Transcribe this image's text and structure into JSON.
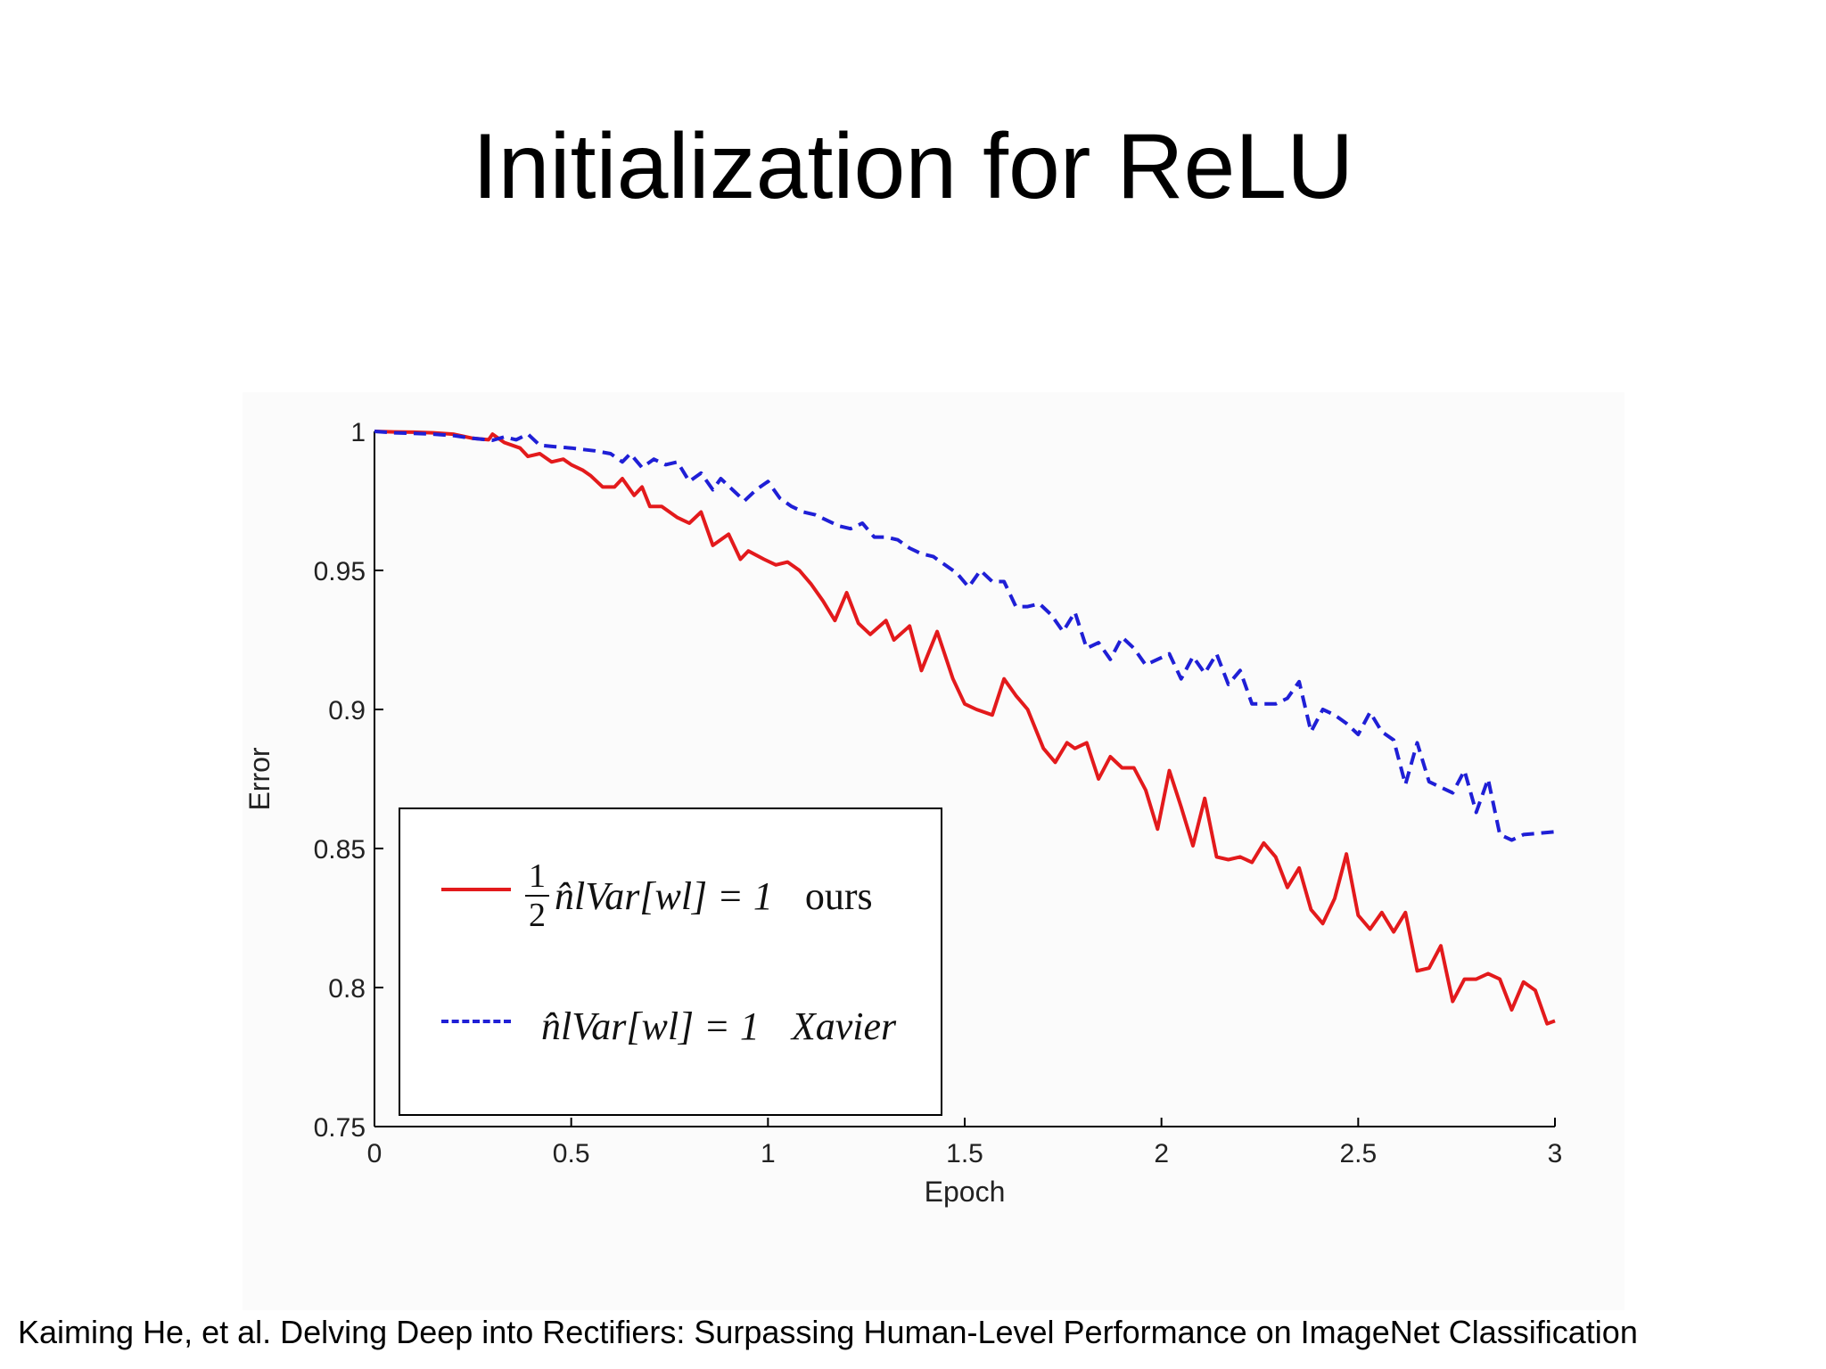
{
  "slide": {
    "title": "Initialization for ReLU",
    "citation": "Kaiming He, et al. Delving Deep into Rectifiers: Surpassing Human-Level Performance on ImageNet Classification"
  },
  "legend": {
    "ours_formula": "n̂lVar[wl] = 1",
    "ours_fraction_num": "1",
    "ours_fraction_den": "2",
    "ours_label": "ours",
    "xavier_formula": "n̂lVar[wl] = 1",
    "xavier_label": "Xavier"
  },
  "colors": {
    "ours": "#e31a1c",
    "xavier": "#1f1fd6",
    "axis": "#000000"
  },
  "chart_data": {
    "type": "line",
    "title": "",
    "xlabel": "Epoch",
    "ylabel": "Error",
    "xlim": [
      0,
      3
    ],
    "ylim": [
      0.75,
      1
    ],
    "xticks": [
      0,
      0.5,
      1,
      1.5,
      2,
      2.5,
      3
    ],
    "xtick_labels": [
      "0",
      "0.5",
      "1",
      "1.5",
      "2",
      "2.5",
      "3"
    ],
    "yticks": [
      0.75,
      0.8,
      0.85,
      0.9,
      0.95,
      1
    ],
    "ytick_labels": [
      "0.75",
      "0.8",
      "0.85",
      "0.9",
      "0.95",
      "1"
    ],
    "grid": false,
    "legend_position": "bottom-left",
    "series": [
      {
        "name": "ours",
        "style": "solid",
        "color": "#e31a1c",
        "points": [
          [
            0,
            1.0
          ],
          [
            0.05,
            0.9998
          ],
          [
            0.1,
            0.9997
          ],
          [
            0.15,
            0.9995
          ],
          [
            0.2,
            0.999
          ],
          [
            0.25,
            0.9975
          ],
          [
            0.29,
            0.997
          ],
          [
            0.3,
            0.999
          ],
          [
            0.33,
            0.996
          ],
          [
            0.37,
            0.994
          ],
          [
            0.39,
            0.991
          ],
          [
            0.42,
            0.992
          ],
          [
            0.45,
            0.989
          ],
          [
            0.48,
            0.99
          ],
          [
            0.5,
            0.988
          ],
          [
            0.53,
            0.986
          ],
          [
            0.55,
            0.984
          ],
          [
            0.58,
            0.98
          ],
          [
            0.61,
            0.98
          ],
          [
            0.63,
            0.983
          ],
          [
            0.66,
            0.977
          ],
          [
            0.68,
            0.98
          ],
          [
            0.7,
            0.973
          ],
          [
            0.73,
            0.973
          ],
          [
            0.75,
            0.971
          ],
          [
            0.77,
            0.969
          ],
          [
            0.8,
            0.967
          ],
          [
            0.83,
            0.971
          ],
          [
            0.86,
            0.959
          ],
          [
            0.9,
            0.963
          ],
          [
            0.93,
            0.954
          ],
          [
            0.95,
            0.957
          ],
          [
            0.99,
            0.954
          ],
          [
            1.02,
            0.952
          ],
          [
            1.05,
            0.953
          ],
          [
            1.08,
            0.95
          ],
          [
            1.11,
            0.945
          ],
          [
            1.14,
            0.939
          ],
          [
            1.17,
            0.932
          ],
          [
            1.2,
            0.942
          ],
          [
            1.23,
            0.931
          ],
          [
            1.26,
            0.927
          ],
          [
            1.3,
            0.932
          ],
          [
            1.32,
            0.925
          ],
          [
            1.36,
            0.93
          ],
          [
            1.39,
            0.914
          ],
          [
            1.43,
            0.928
          ],
          [
            1.47,
            0.911
          ],
          [
            1.5,
            0.902
          ],
          [
            1.53,
            0.9
          ],
          [
            1.57,
            0.898
          ],
          [
            1.6,
            0.911
          ],
          [
            1.63,
            0.905
          ],
          [
            1.66,
            0.9
          ],
          [
            1.7,
            0.886
          ],
          [
            1.73,
            0.881
          ],
          [
            1.76,
            0.888
          ],
          [
            1.78,
            0.886
          ],
          [
            1.81,
            0.888
          ],
          [
            1.84,
            0.875
          ],
          [
            1.87,
            0.883
          ],
          [
            1.9,
            0.879
          ],
          [
            1.93,
            0.879
          ],
          [
            1.96,
            0.871
          ],
          [
            1.99,
            0.857
          ],
          [
            2.02,
            0.878
          ],
          [
            2.05,
            0.865
          ],
          [
            2.08,
            0.851
          ],
          [
            2.11,
            0.868
          ],
          [
            2.14,
            0.847
          ],
          [
            2.17,
            0.846
          ],
          [
            2.2,
            0.847
          ],
          [
            2.23,
            0.845
          ],
          [
            2.26,
            0.852
          ],
          [
            2.29,
            0.847
          ],
          [
            2.32,
            0.836
          ],
          [
            2.35,
            0.843
          ],
          [
            2.38,
            0.828
          ],
          [
            2.41,
            0.823
          ],
          [
            2.44,
            0.832
          ],
          [
            2.47,
            0.848
          ],
          [
            2.5,
            0.826
          ],
          [
            2.53,
            0.821
          ],
          [
            2.56,
            0.827
          ],
          [
            2.59,
            0.82
          ],
          [
            2.62,
            0.827
          ],
          [
            2.65,
            0.806
          ],
          [
            2.68,
            0.807
          ],
          [
            2.71,
            0.815
          ],
          [
            2.74,
            0.795
          ],
          [
            2.77,
            0.803
          ],
          [
            2.8,
            0.803
          ],
          [
            2.83,
            0.805
          ],
          [
            2.86,
            0.803
          ],
          [
            2.89,
            0.792
          ],
          [
            2.92,
            0.802
          ],
          [
            2.95,
            0.799
          ],
          [
            2.98,
            0.787
          ],
          [
            3.0,
            0.788
          ]
        ]
      },
      {
        "name": "Xavier",
        "style": "dashed",
        "color": "#1f1fd6",
        "points": [
          [
            0,
            1.0
          ],
          [
            0.05,
            0.9995
          ],
          [
            0.1,
            0.9993
          ],
          [
            0.15,
            0.999
          ],
          [
            0.2,
            0.9985
          ],
          [
            0.25,
            0.9975
          ],
          [
            0.3,
            0.9968
          ],
          [
            0.33,
            0.998
          ],
          [
            0.36,
            0.997
          ],
          [
            0.39,
            0.999
          ],
          [
            0.42,
            0.995
          ],
          [
            0.46,
            0.9945
          ],
          [
            0.5,
            0.994
          ],
          [
            0.53,
            0.9935
          ],
          [
            0.56,
            0.993
          ],
          [
            0.6,
            0.992
          ],
          [
            0.63,
            0.989
          ],
          [
            0.65,
            0.992
          ],
          [
            0.68,
            0.987
          ],
          [
            0.71,
            0.99
          ],
          [
            0.74,
            0.988
          ],
          [
            0.77,
            0.989
          ],
          [
            0.8,
            0.982
          ],
          [
            0.83,
            0.985
          ],
          [
            0.86,
            0.979
          ],
          [
            0.88,
            0.983
          ],
          [
            0.91,
            0.979
          ],
          [
            0.94,
            0.975
          ],
          [
            0.97,
            0.979
          ],
          [
            1.0,
            0.982
          ],
          [
            1.03,
            0.976
          ],
          [
            1.06,
            0.973
          ],
          [
            1.09,
            0.971
          ],
          [
            1.12,
            0.97
          ],
          [
            1.15,
            0.968
          ],
          [
            1.18,
            0.966
          ],
          [
            1.21,
            0.965
          ],
          [
            1.24,
            0.967
          ],
          [
            1.27,
            0.962
          ],
          [
            1.3,
            0.962
          ],
          [
            1.33,
            0.961
          ],
          [
            1.36,
            0.958
          ],
          [
            1.39,
            0.956
          ],
          [
            1.42,
            0.955
          ],
          [
            1.45,
            0.952
          ],
          [
            1.48,
            0.949
          ],
          [
            1.51,
            0.944
          ],
          [
            1.54,
            0.95
          ],
          [
            1.57,
            0.946
          ],
          [
            1.6,
            0.946
          ],
          [
            1.63,
            0.937
          ],
          [
            1.66,
            0.937
          ],
          [
            1.69,
            0.938
          ],
          [
            1.72,
            0.934
          ],
          [
            1.75,
            0.928
          ],
          [
            1.78,
            0.935
          ],
          [
            1.81,
            0.922
          ],
          [
            1.84,
            0.924
          ],
          [
            1.87,
            0.918
          ],
          [
            1.9,
            0.926
          ],
          [
            1.93,
            0.922
          ],
          [
            1.96,
            0.916
          ],
          [
            1.99,
            0.918
          ],
          [
            2.02,
            0.92
          ],
          [
            2.05,
            0.911
          ],
          [
            2.08,
            0.919
          ],
          [
            2.11,
            0.913
          ],
          [
            2.14,
            0.92
          ],
          [
            2.17,
            0.909
          ],
          [
            2.2,
            0.914
          ],
          [
            2.23,
            0.902
          ],
          [
            2.26,
            0.902
          ],
          [
            2.29,
            0.902
          ],
          [
            2.32,
            0.904
          ],
          [
            2.35,
            0.91
          ],
          [
            2.38,
            0.892
          ],
          [
            2.41,
            0.9
          ],
          [
            2.44,
            0.898
          ],
          [
            2.47,
            0.895
          ],
          [
            2.5,
            0.891
          ],
          [
            2.53,
            0.899
          ],
          [
            2.56,
            0.892
          ],
          [
            2.59,
            0.889
          ],
          [
            2.62,
            0.873
          ],
          [
            2.65,
            0.888
          ],
          [
            2.68,
            0.874
          ],
          [
            2.71,
            0.872
          ],
          [
            2.74,
            0.87
          ],
          [
            2.77,
            0.878
          ],
          [
            2.8,
            0.863
          ],
          [
            2.83,
            0.875
          ],
          [
            2.86,
            0.855
          ],
          [
            2.89,
            0.853
          ],
          [
            2.92,
            0.855
          ],
          [
            3.0,
            0.856
          ]
        ]
      }
    ]
  }
}
